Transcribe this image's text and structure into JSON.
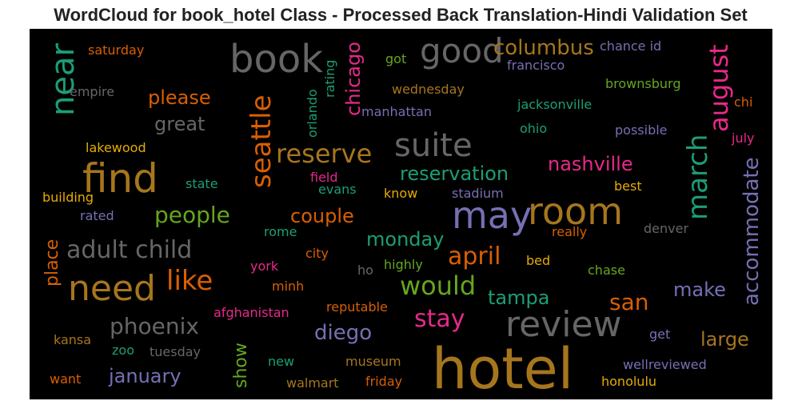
{
  "chart_data": {
    "type": "wordcloud",
    "title": "WordCloud for book_hotel Class - Processed Back Translation-Hindi Validation Set",
    "background": "#000000",
    "words": [
      {
        "text": "hotel",
        "color": "#a6761d"
      },
      {
        "text": "book",
        "color": "#666666"
      },
      {
        "text": "good",
        "color": "#666666"
      },
      {
        "text": "find",
        "color": "#a6761d"
      },
      {
        "text": "need",
        "color": "#a6761d"
      },
      {
        "text": "suite",
        "color": "#666666"
      },
      {
        "text": "may",
        "color": "#7570b3"
      },
      {
        "text": "room",
        "color": "#a6761d"
      },
      {
        "text": "review",
        "color": "#666666"
      },
      {
        "text": "near",
        "color": "#1b9e77"
      },
      {
        "text": "seattle",
        "color": "#d95f02"
      },
      {
        "text": "august",
        "color": "#e7298a"
      },
      {
        "text": "march",
        "color": "#1b9e77"
      },
      {
        "text": "accommodate",
        "color": "#7570b3"
      },
      {
        "text": "chicago",
        "color": "#e7298a"
      },
      {
        "text": "place",
        "color": "#d95f02"
      },
      {
        "text": "show",
        "color": "#66a61e"
      },
      {
        "text": "orlando",
        "color": "#1b9e77"
      },
      {
        "text": "rating",
        "color": "#1b9e77"
      },
      {
        "text": "reserve",
        "color": "#a6761d"
      },
      {
        "text": "columbus",
        "color": "#a6761d"
      },
      {
        "text": "please",
        "color": "#d95f02"
      },
      {
        "text": "great",
        "color": "#666666"
      },
      {
        "text": "people",
        "color": "#66a61e"
      },
      {
        "text": "adult child",
        "color": "#666666"
      },
      {
        "text": "like",
        "color": "#d95f02"
      },
      {
        "text": "phoenix",
        "color": "#666666"
      },
      {
        "text": "january",
        "color": "#7570b3"
      },
      {
        "text": "reservation",
        "color": "#1b9e77"
      },
      {
        "text": "nashville",
        "color": "#e7298a"
      },
      {
        "text": "couple",
        "color": "#d95f02"
      },
      {
        "text": "monday",
        "color": "#1b9e77"
      },
      {
        "text": "april",
        "color": "#d95f02"
      },
      {
        "text": "would",
        "color": "#66a61e"
      },
      {
        "text": "tampa",
        "color": "#1b9e77"
      },
      {
        "text": "san",
        "color": "#d95f02"
      },
      {
        "text": "make",
        "color": "#7570b3"
      },
      {
        "text": "stay",
        "color": "#e7298a"
      },
      {
        "text": "diego",
        "color": "#7570b3"
      },
      {
        "text": "large",
        "color": "#a6761d"
      },
      {
        "text": "saturday",
        "color": "#d95f02"
      },
      {
        "text": "empire",
        "color": "#666666"
      },
      {
        "text": "lakewood",
        "color": "#e6ab02"
      },
      {
        "text": "state",
        "color": "#1b9e77"
      },
      {
        "text": "building",
        "color": "#e6ab02"
      },
      {
        "text": "rated",
        "color": "#7570b3"
      },
      {
        "text": "field",
        "color": "#e7298a"
      },
      {
        "text": "evans",
        "color": "#1b9e77"
      },
      {
        "text": "know",
        "color": "#e6ab02"
      },
      {
        "text": "stadium",
        "color": "#7570b3"
      },
      {
        "text": "best",
        "color": "#e6ab02"
      },
      {
        "text": "rome",
        "color": "#1b9e77"
      },
      {
        "text": "really",
        "color": "#d95f02"
      },
      {
        "text": "denver",
        "color": "#666666"
      },
      {
        "text": "york",
        "color": "#e7298a"
      },
      {
        "text": "city",
        "color": "#d95f02"
      },
      {
        "text": "highly",
        "color": "#66a61e"
      },
      {
        "text": "bed",
        "color": "#e6ab02"
      },
      {
        "text": "ho",
        "color": "#666666"
      },
      {
        "text": "chase",
        "color": "#66a61e"
      },
      {
        "text": "minh",
        "color": "#d95f02"
      },
      {
        "text": "afghanistan",
        "color": "#e7298a"
      },
      {
        "text": "reputable",
        "color": "#d95f02"
      },
      {
        "text": "got",
        "color": "#66a61e"
      },
      {
        "text": "wednesday",
        "color": "#a6761d"
      },
      {
        "text": "manhattan",
        "color": "#7570b3"
      },
      {
        "text": "francisco",
        "color": "#7570b3"
      },
      {
        "text": "chance id",
        "color": "#7570b3"
      },
      {
        "text": "brownsburg",
        "color": "#66a61e"
      },
      {
        "text": "jacksonville",
        "color": "#1b9e77"
      },
      {
        "text": "chi",
        "color": "#d95f02"
      },
      {
        "text": "ohio",
        "color": "#1b9e77"
      },
      {
        "text": "possible",
        "color": "#7570b3"
      },
      {
        "text": "july",
        "color": "#e7298a"
      },
      {
        "text": "kansa",
        "color": "#a6761d"
      },
      {
        "text": "zoo",
        "color": "#1b9e77"
      },
      {
        "text": "tuesday",
        "color": "#666666"
      },
      {
        "text": "get",
        "color": "#7570b3"
      },
      {
        "text": "new",
        "color": "#1b9e77"
      },
      {
        "text": "museum",
        "color": "#a6761d"
      },
      {
        "text": "wellreviewed",
        "color": "#7570b3"
      },
      {
        "text": "want",
        "color": "#d95f02"
      },
      {
        "text": "walmart",
        "color": "#a6761d"
      },
      {
        "text": "friday",
        "color": "#d95f02"
      },
      {
        "text": "honolulu",
        "color": "#e6ab02"
      }
    ]
  }
}
